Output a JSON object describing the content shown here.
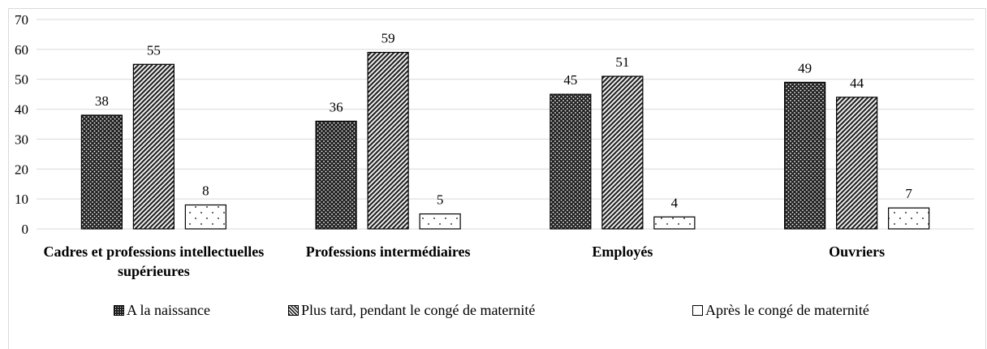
{
  "chart_data": {
    "type": "bar",
    "categories": [
      "Cadres et professions intellectuelles supérieures",
      "Professions intermédiaires",
      "Employés",
      "Ouvriers"
    ],
    "series": [
      {
        "name": "A la naissance",
        "color": "#333333",
        "pattern": "dots-dark",
        "values": [
          38,
          36,
          45,
          49
        ]
      },
      {
        "name": "Plus tard, pendant le congé de maternité",
        "color": "#666666",
        "pattern": "stripes",
        "values": [
          55,
          59,
          51,
          44
        ]
      },
      {
        "name": "Après le congé de maternité",
        "color": "#ffffff",
        "pattern": "dots-light",
        "values": [
          8,
          5,
          4,
          7
        ]
      }
    ],
    "ylim": [
      0,
      70
    ],
    "yticks": [
      0,
      10,
      20,
      30,
      40,
      50,
      60,
      70
    ],
    "grid": true,
    "legend": "bottom"
  }
}
